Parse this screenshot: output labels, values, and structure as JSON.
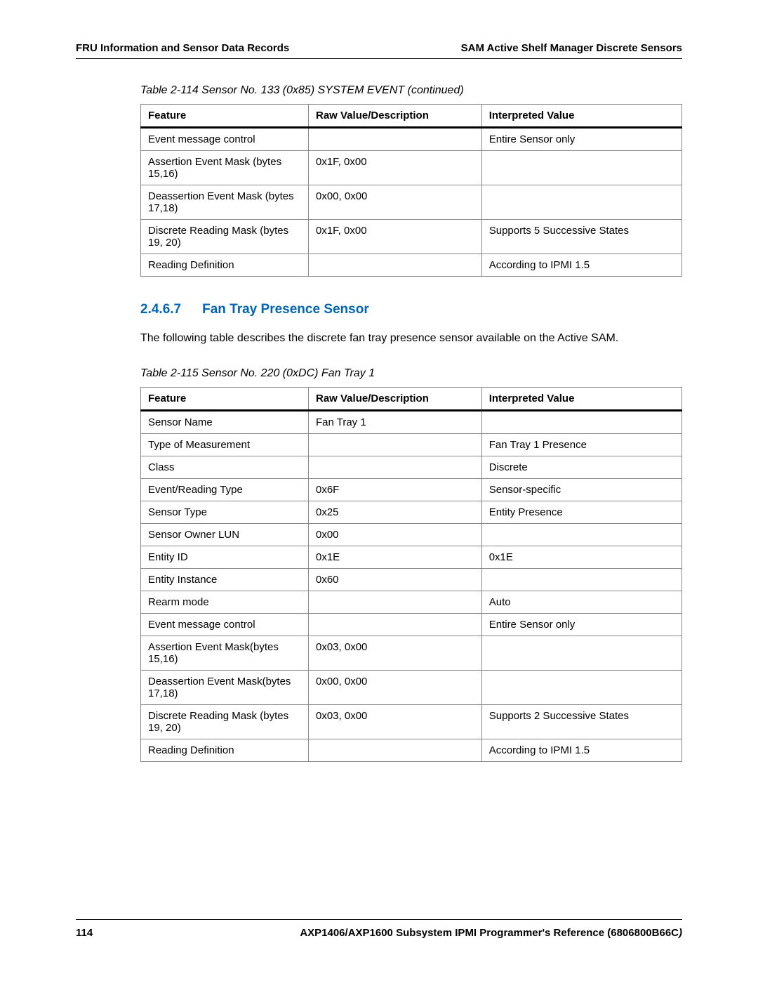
{
  "header": {
    "left": "FRU Information and Sensor Data Records",
    "right": "SAM Active Shelf Manager Discrete Sensors"
  },
  "table1": {
    "caption": "Table 2-114 Sensor No. 133 (0x85) SYSTEM EVENT (continued)",
    "columns": [
      "Feature",
      "Raw Value/Description",
      "Interpreted Value"
    ],
    "rows": [
      [
        "Event message control",
        "",
        "Entire Sensor only"
      ],
      [
        "Assertion Event Mask (bytes 15,16)",
        "0x1F, 0x00",
        ""
      ],
      [
        "Deassertion Event Mask (bytes 17,18)",
        "0x00, 0x00",
        ""
      ],
      [
        "Discrete Reading Mask (bytes 19, 20)",
        "0x1F, 0x00",
        "Supports 5 Successive States"
      ],
      [
        "Reading Definition",
        "",
        "According to IPMI 1.5"
      ]
    ]
  },
  "section": {
    "number": "2.4.6.7",
    "title": "Fan Tray Presence Sensor",
    "intro": "The following table describes the discrete fan tray presence sensor available on the Active SAM."
  },
  "table2": {
    "caption": "Table 2-115 Sensor No. 220 (0xDC) Fan Tray 1",
    "columns": [
      "Feature",
      "Raw Value/Description",
      "Interpreted Value"
    ],
    "rows": [
      [
        "Sensor Name",
        "Fan Tray 1",
        ""
      ],
      [
        "Type of Measurement",
        "",
        "Fan Tray 1 Presence"
      ],
      [
        "Class",
        "",
        "Discrete"
      ],
      [
        "Event/Reading Type",
        "0x6F",
        "Sensor-specific"
      ],
      [
        "Sensor Type",
        "0x25",
        "Entity Presence"
      ],
      [
        "Sensor Owner LUN",
        "0x00",
        ""
      ],
      [
        "Entity ID",
        "0x1E",
        "0x1E"
      ],
      [
        "Entity Instance",
        "0x60",
        ""
      ],
      [
        "Rearm mode",
        "",
        "Auto"
      ],
      [
        "Event message control",
        "",
        "Entire Sensor only"
      ],
      [
        "Assertion Event Mask(bytes 15,16)",
        "0x03, 0x00",
        ""
      ],
      [
        "Deassertion Event Mask(bytes 17,18)",
        "0x00, 0x00",
        ""
      ],
      [
        "Discrete Reading Mask (bytes 19, 20)",
        "0x03, 0x00",
        "Supports 2 Successive States"
      ],
      [
        "Reading Definition",
        "",
        "According to IPMI 1.5"
      ]
    ]
  },
  "footer": {
    "page": "114",
    "doc_main": "AXP1406/AXP1600 Subsystem IPMI Programmer's Reference (6806800B66C",
    "doc_close": ")"
  },
  "style": {
    "accent_color": "#0066b3",
    "border_color": "#888888",
    "header_rule_color": "#000000",
    "background": "#ffffff",
    "body_font_size": 16,
    "table_font_size": 15
  }
}
